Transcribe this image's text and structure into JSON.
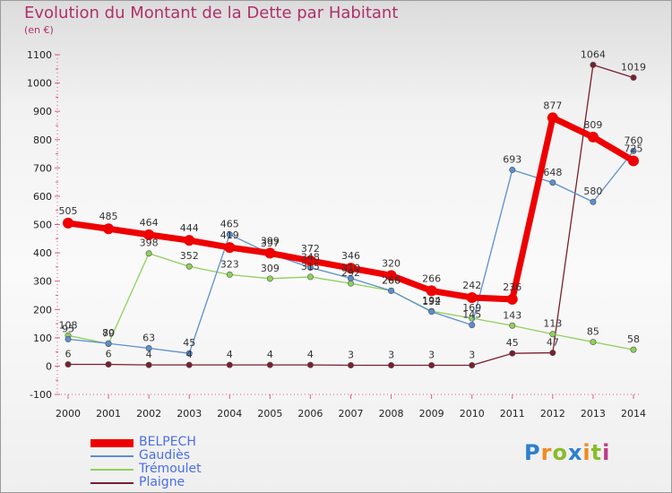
{
  "title": "Evolution du Montant de la Dette par Habitant",
  "subtitle": "(en €)",
  "logo": {
    "text": "Proxiti",
    "letter_colors": [
      "#2e7fcf",
      "#f08a1e",
      "#8abd2a",
      "#2e7fcf",
      "#f08a1e",
      "#8abd2a",
      "#c23a8a"
    ]
  },
  "chart_data": {
    "type": "line",
    "x": [
      2000,
      2001,
      2002,
      2003,
      2004,
      2005,
      2006,
      2007,
      2008,
      2009,
      2010,
      2011,
      2012,
      2013,
      2014
    ],
    "ylim": [
      -100,
      1100
    ],
    "yticks": [
      -100,
      0,
      100,
      200,
      300,
      400,
      500,
      600,
      700,
      800,
      900,
      1000,
      1100
    ],
    "grid": false,
    "legend_position": "bottom-left",
    "series": [
      {
        "name": "Plaigne",
        "color": "#7a1f2e",
        "values": [
          6,
          6,
          4,
          4,
          4,
          4,
          4,
          3,
          3,
          3,
          3,
          45,
          47,
          1064,
          1019
        ],
        "labels": [
          "6",
          "6",
          "4",
          "4",
          "4",
          "4",
          "4",
          "3",
          "3",
          "3",
          "3",
          "45",
          "47",
          "1064",
          "1019"
        ]
      },
      {
        "name": "Trémoulet",
        "color": "#8fd05a",
        "values": [
          108,
          79,
          398,
          352,
          323,
          309,
          315,
          292,
          266,
          194,
          169,
          143,
          113,
          85,
          58
        ],
        "labels": [
          "108",
          "79",
          "398",
          "352",
          "323",
          "309",
          "315",
          "292",
          "266",
          "194",
          "169",
          "143",
          "113",
          "85",
          "58"
        ]
      },
      {
        "name": "Gaudiès",
        "color": "#5b8fcf",
        "values": [
          95,
          80,
          63,
          45,
          465,
          397,
          348,
          310,
          266,
          192,
          145,
          693,
          648,
          580,
          760
        ],
        "labels": [
          "95",
          "80",
          "63",
          "45",
          "465",
          "397",
          "348",
          "310",
          "266",
          "192",
          "145",
          "693",
          "648",
          "580",
          "760"
        ]
      },
      {
        "name": "BELPECH",
        "color": "#ee0000",
        "values": [
          505,
          485,
          464,
          444,
          419,
          399,
          372,
          346,
          320,
          266,
          242,
          236,
          877,
          809,
          725
        ],
        "labels": [
          "505",
          "485",
          "464",
          "444",
          "419",
          "399",
          "372",
          "346",
          "320",
          "266",
          "242",
          "236",
          "877",
          "809",
          "725"
        ]
      }
    ]
  }
}
